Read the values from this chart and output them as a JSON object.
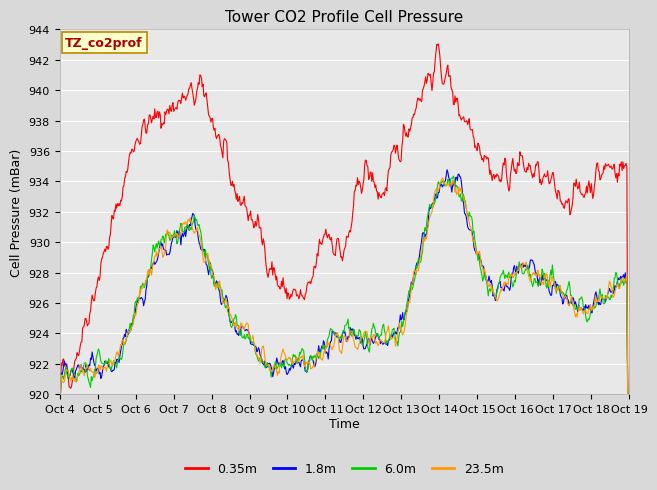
{
  "title": "Tower CO2 Profile Cell Pressure",
  "ylabel": "Cell Pressure (mBar)",
  "xlabel": "Time",
  "annotation": "TZ_co2prof",
  "ylim": [
    920,
    944
  ],
  "yticks": [
    920,
    922,
    924,
    926,
    928,
    930,
    932,
    934,
    936,
    938,
    940,
    942,
    944
  ],
  "xtick_labels": [
    "Oct 4",
    "Oct 5",
    "Oct 6",
    "Oct 7",
    "Oct 8",
    "Oct 9",
    "Oct 10",
    "Oct 11",
    "Oct 12",
    "Oct 13",
    "Oct 14",
    "Oct 15",
    "Oct 16",
    "Oct 17",
    "Oct 18",
    "Oct 19"
  ],
  "series_labels": [
    "0.35m",
    "1.8m",
    "6.0m",
    "23.5m"
  ],
  "series_colors": [
    "#ff0000",
    "#0000ff",
    "#00cc00",
    "#ff9900"
  ],
  "background_color": "#d9d9d9",
  "plot_bg_color": "#e8e8e8",
  "grid_color": "#ffffff",
  "title_fontsize": 11,
  "label_fontsize": 9,
  "tick_fontsize": 8,
  "legend_fontsize": 9,
  "annotation_fontsize": 9
}
